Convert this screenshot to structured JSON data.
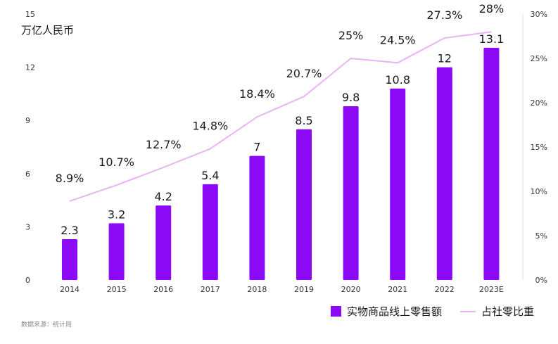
{
  "colors": {
    "bar": "#8c09f5",
    "line": "#e9b3f6",
    "axis_text": "#333333",
    "label_text": "#1a1a1a"
  },
  "left_axis_title": "万亿人民币",
  "source": "数据来源：统计局",
  "legend": [
    {
      "label": "实物商品线上零售额",
      "type": "bar",
      "icon": "bar-swatch"
    },
    {
      "label": "占社零比重",
      "type": "line",
      "icon": "line-swatch"
    }
  ],
  "chart_data": {
    "type": "bar",
    "categories": [
      "2014",
      "2015",
      "2016",
      "2017",
      "2018",
      "2019",
      "2020",
      "2021",
      "2022",
      "2023E"
    ],
    "series": [
      {
        "name": "实物商品线上零售额",
        "type": "bar",
        "axis": "left",
        "values": [
          2.3,
          3.2,
          4.2,
          5.4,
          7,
          8.5,
          9.8,
          10.8,
          12,
          13.1
        ],
        "labels": [
          "2.3",
          "3.2",
          "4.2",
          "5.4",
          "7",
          "8.5",
          "9.8",
          "10.8",
          "12",
          "13.1"
        ]
      },
      {
        "name": "占社零比重",
        "type": "line",
        "axis": "right",
        "values": [
          8.9,
          10.7,
          12.7,
          14.8,
          18.4,
          20.7,
          25,
          24.5,
          27.3,
          28
        ],
        "labels": [
          "8.9%",
          "10.7%",
          "12.7%",
          "14.8%",
          "18.4%",
          "20.7%",
          "25%",
          "24.5%",
          "27.3%",
          "28%"
        ]
      }
    ],
    "ylabel": "万亿人民币",
    "ylim": [
      0,
      15
    ],
    "yticks": [
      "0",
      "3",
      "6",
      "9",
      "12",
      "15"
    ],
    "y2lim": [
      0,
      30
    ],
    "y2ticks": [
      "0%",
      "5%",
      "10%",
      "15%",
      "20%",
      "25%",
      "30%"
    ],
    "grid": false,
    "legend_position": "bottom-right"
  }
}
